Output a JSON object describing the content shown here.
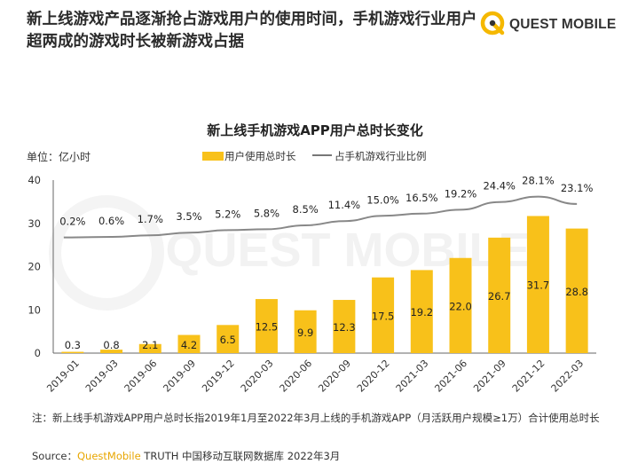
{
  "headline": "新上线游戏产品逐渐抢占游戏用户的使用时间，手机游戏行业用户超两成的游戏时长被新游戏占据",
  "logo": {
    "text": "QUEST MOBILE",
    "icon": "quest-mobile-logo",
    "watermark": "QUEST MOBILE"
  },
  "unit_label": "单位：亿小时",
  "legend": {
    "bar_label": "用户使用总时长",
    "line_label": "占手机游戏行业比例"
  },
  "colors": {
    "bar": "#f8c11a",
    "line": "#888888"
  },
  "chart_data": {
    "type": "bar",
    "title": "新上线手机游戏APP用户总时长变化",
    "categories": [
      "2019-01",
      "2019-03",
      "2019-06",
      "2019-09",
      "2019-12",
      "2020-03",
      "2020-06",
      "2020-09",
      "2020-12",
      "2021-03",
      "2021-06",
      "2021-09",
      "2021-12",
      "2022-03"
    ],
    "series": [
      {
        "name": "用户使用总时长",
        "type": "bar",
        "values": [
          0.3,
          0.8,
          2.1,
          4.2,
          6.5,
          12.5,
          9.9,
          12.3,
          17.5,
          19.2,
          22.0,
          26.7,
          31.7,
          28.8
        ],
        "labels": [
          "0.3",
          "0.8",
          "2.1",
          "4.2",
          "6.5",
          "12.5",
          "9.9",
          "12.3",
          "17.5",
          "19.2",
          "22.0",
          "26.7",
          "31.7",
          "28.8"
        ]
      },
      {
        "name": "占手机游戏行业比例",
        "type": "line",
        "values": [
          0.2,
          0.6,
          1.7,
          3.5,
          5.2,
          5.8,
          8.5,
          11.4,
          15.0,
          16.5,
          19.2,
          24.4,
          28.1,
          23.1
        ],
        "labels": [
          "0.2%",
          "0.6%",
          "1.7%",
          "3.5%",
          "5.2%",
          "5.8%",
          "8.5%",
          "11.4%",
          "15.0%",
          "16.5%",
          "19.2%",
          "24.4%",
          "28.1%",
          "23.1%"
        ]
      }
    ],
    "y_ticks": [
      "0",
      "10",
      "20",
      "30",
      "40"
    ],
    "ylim": [
      0,
      40
    ],
    "grid": false,
    "legend_position": "top-center"
  },
  "note": "注：新上线手机游戏APP用户总时长指2019年1月至2022年3月上线的手机游戏APP（月活跃用户规模≥1万）合计使用总时长",
  "source": {
    "prefix": "Source：",
    "brand": "QuestMobile",
    "rest": " TRUTH 中国移动互联网数据库 2022年3月"
  }
}
